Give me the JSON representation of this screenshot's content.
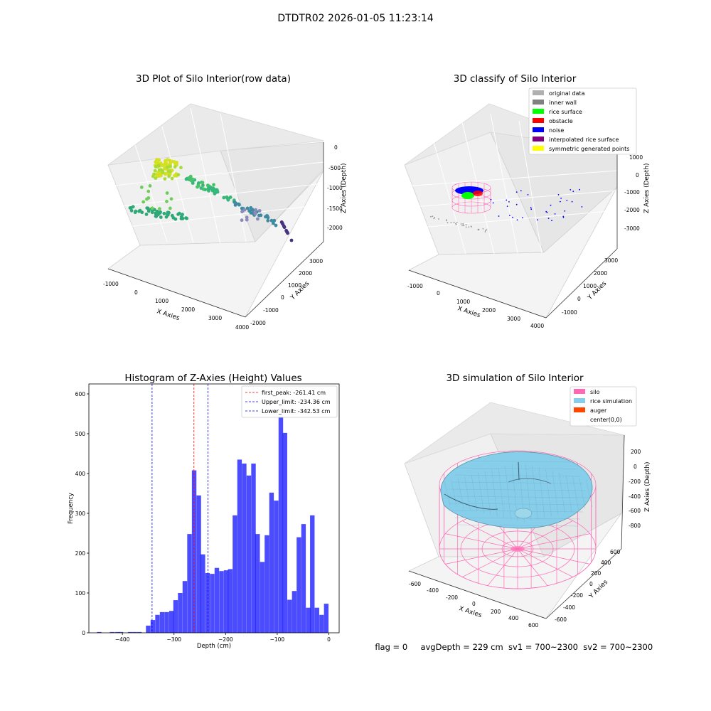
{
  "figure": {
    "suptitle": "DTDTR02 2026-01-05 11:23:14",
    "footer": {
      "flag": "flag = 0",
      "avg_depth": "avgDepth = 229 cm",
      "sv1": "sv1 = 700~2300",
      "sv2": "sv2 = 700~2300"
    }
  },
  "chart_data": [
    {
      "type": "scatter",
      "title": "3D Plot of Silo Interior(row data)",
      "xlabel": "X Axies",
      "ylabel": "Y Axies",
      "zlabel": "Z Axies (Depth)",
      "xticks": [
        "-1000",
        "0",
        "1000",
        "2000",
        "3000",
        "4000"
      ],
      "yticks": [
        "-2000",
        "-1000",
        "0",
        "1000",
        "2000",
        "3000"
      ],
      "zticks": [
        "0",
        "-500",
        "-1000",
        "-1500",
        "-2000"
      ],
      "grid": true,
      "colormap": "viridis"
    },
    {
      "type": "scatter",
      "title": "3D classify of Silo Interior",
      "xlabel": "X Axies",
      "ylabel": "Y Axies",
      "zlabel": "Z Axies (Depth)",
      "xticks": [
        "-1000",
        "0",
        "1000",
        "2000",
        "3000",
        "4000"
      ],
      "yticks": [
        "-1000",
        "0",
        "1000",
        "2000",
        "3000"
      ],
      "zticks": [
        "1000",
        "0",
        "-1000",
        "-2000",
        "-3000"
      ],
      "grid": true,
      "legend_position": "top-right",
      "legend": [
        {
          "label": "original data",
          "color": "#b0b0b0"
        },
        {
          "label": "inner wall",
          "color": "#808080"
        },
        {
          "label": "rice surface",
          "color": "#00ff00"
        },
        {
          "label": "obstacle",
          "color": "#ff0000"
        },
        {
          "label": "noise",
          "color": "#0000ff"
        },
        {
          "label": "interpolated rice surface",
          "color": "#800080"
        },
        {
          "label": "symmetric generated points",
          "color": "#ffff00"
        }
      ]
    },
    {
      "type": "bar",
      "title": "Histogram of Z-Axies (Height) Values",
      "xlabel": "Depth (cm)",
      "ylabel": "Frequency",
      "xlim": [
        -465,
        20
      ],
      "ylim": [
        0,
        625
      ],
      "xticks": [
        -400,
        -300,
        -200,
        -100,
        0
      ],
      "yticks": [
        0,
        100,
        200,
        300,
        400,
        500,
        600
      ],
      "bar_color": "#0000ff",
      "bin_width": 8.8,
      "bins": [
        {
          "x": -445,
          "v": 2
        },
        {
          "x": -420,
          "v": 2
        },
        {
          "x": -410,
          "v": 2
        },
        {
          "x": -403,
          "v": 2
        },
        {
          "x": -385,
          "v": 2
        },
        {
          "x": -376,
          "v": 2
        },
        {
          "x": -367,
          "v": 2
        },
        {
          "x": -350,
          "v": 18
        },
        {
          "x": -341,
          "v": 32
        },
        {
          "x": -332,
          "v": 45
        },
        {
          "x": -323,
          "v": 52
        },
        {
          "x": -314,
          "v": 52
        },
        {
          "x": -305,
          "v": 55
        },
        {
          "x": -297,
          "v": 82
        },
        {
          "x": -288,
          "v": 100
        },
        {
          "x": -279,
          "v": 130
        },
        {
          "x": -270,
          "v": 248
        },
        {
          "x": -261,
          "v": 408
        },
        {
          "x": -252,
          "v": 345
        },
        {
          "x": -244,
          "v": 197
        },
        {
          "x": -235,
          "v": 150
        },
        {
          "x": -226,
          "v": 148
        },
        {
          "x": -217,
          "v": 163
        },
        {
          "x": -208,
          "v": 155
        },
        {
          "x": -199,
          "v": 157
        },
        {
          "x": -191,
          "v": 160
        },
        {
          "x": -182,
          "v": 295
        },
        {
          "x": -173,
          "v": 435
        },
        {
          "x": -164,
          "v": 425
        },
        {
          "x": -155,
          "v": 395
        },
        {
          "x": -146,
          "v": 425
        },
        {
          "x": -138,
          "v": 248
        },
        {
          "x": -129,
          "v": 178
        },
        {
          "x": -120,
          "v": 245
        },
        {
          "x": -111,
          "v": 352
        },
        {
          "x": -102,
          "v": 332
        },
        {
          "x": -93,
          "v": 595
        },
        {
          "x": -85,
          "v": 502
        },
        {
          "x": -76,
          "v": 83
        },
        {
          "x": -67,
          "v": 105
        },
        {
          "x": -58,
          "v": 240
        },
        {
          "x": -49,
          "v": 273
        },
        {
          "x": -40,
          "v": 63
        },
        {
          "x": -32,
          "v": 295
        },
        {
          "x": -23,
          "v": 63
        },
        {
          "x": -14,
          "v": 45
        },
        {
          "x": -5,
          "v": 73
        }
      ],
      "lines": [
        {
          "label": "first_peak: -261.41 cm",
          "x": -261.41,
          "color": "#ff0000"
        },
        {
          "label": "Upper_limit: -234.36 cm",
          "x": -234.36,
          "color": "#0000ff"
        },
        {
          "label": "Lower_limit: -342.53 cm",
          "x": -342.53,
          "color": "#0000ff"
        }
      ],
      "legend_position": "top-right"
    },
    {
      "type": "surface",
      "title": "3D simulation of Silo Interior",
      "xlabel": "X Axies",
      "ylabel": "Y Axies",
      "zlabel": "Z Axies (Depth)",
      "xticks": [
        "-600",
        "-400",
        "-200",
        "0",
        "200",
        "400",
        "600"
      ],
      "yticks": [
        "-600",
        "-400",
        "-200",
        "0",
        "200",
        "400",
        "600"
      ],
      "zticks": [
        "200",
        "0",
        "-200",
        "-400",
        "-600",
        "-800"
      ],
      "grid": true,
      "legend_position": "top-right",
      "legend": [
        {
          "label": "silo",
          "color": "#ff69b4"
        },
        {
          "label": "rice simulation",
          "color": "#87ceeb"
        },
        {
          "label": "auger",
          "color": "#ff4500"
        },
        {
          "label": "center(0,0)",
          "color": "#ffffff"
        }
      ]
    }
  ]
}
